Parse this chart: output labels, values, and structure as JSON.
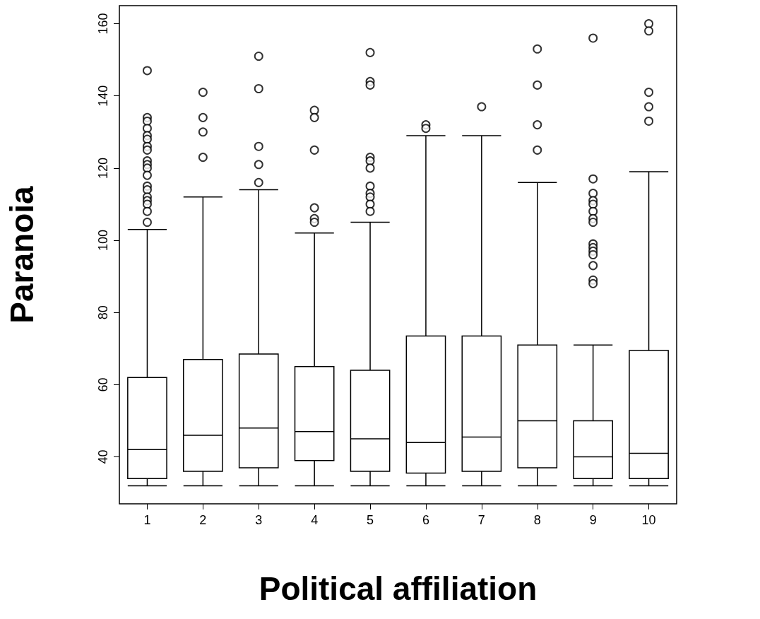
{
  "chart_data": {
    "type": "box",
    "xlabel": "Political affiliation",
    "ylabel": "Paranoia",
    "categories": [
      "1",
      "2",
      "3",
      "4",
      "5",
      "6",
      "7",
      "8",
      "9",
      "10"
    ],
    "ylim": [
      27,
      165
    ],
    "yticks": [
      40,
      60,
      80,
      100,
      120,
      140,
      160
    ],
    "boxes": [
      {
        "low": 32,
        "q1": 34,
        "median": 42,
        "q3": 62,
        "high": 103,
        "outliers": [
          147,
          134,
          133,
          131,
          129,
          128,
          126,
          125,
          122,
          121,
          120,
          118,
          115,
          114,
          112,
          111,
          110,
          108,
          105
        ]
      },
      {
        "low": 32,
        "q1": 36,
        "median": 46,
        "q3": 67,
        "high": 112,
        "outliers": [
          141,
          134,
          130,
          123
        ]
      },
      {
        "low": 32,
        "q1": 37,
        "median": 48,
        "q3": 68.5,
        "high": 114,
        "outliers": [
          151,
          142,
          126,
          121,
          116
        ]
      },
      {
        "low": 32,
        "q1": 39,
        "median": 47,
        "q3": 65,
        "high": 102,
        "outliers": [
          136,
          134,
          125,
          109,
          106,
          105
        ]
      },
      {
        "low": 32,
        "q1": 36,
        "median": 45,
        "q3": 64,
        "high": 105,
        "outliers": [
          152,
          144,
          143,
          123,
          122,
          120,
          115,
          113,
          112,
          110,
          108
        ]
      },
      {
        "low": 32,
        "q1": 35.5,
        "median": 44,
        "q3": 73.5,
        "high": 129,
        "outliers": [
          132,
          131
        ]
      },
      {
        "low": 32,
        "q1": 36,
        "median": 45.5,
        "q3": 73.5,
        "high": 129,
        "outliers": [
          137
        ]
      },
      {
        "low": 32,
        "q1": 37,
        "median": 50,
        "q3": 71,
        "high": 116,
        "outliers": [
          153,
          143,
          132,
          125
        ]
      },
      {
        "low": 32,
        "q1": 34,
        "median": 40,
        "q3": 50,
        "high": 71,
        "outliers": [
          156,
          117,
          113,
          111,
          110,
          108,
          106,
          105,
          99,
          98,
          97,
          96,
          93,
          89,
          88
        ]
      },
      {
        "low": 32,
        "q1": 34,
        "median": 41,
        "q3": 69.5,
        "high": 119,
        "outliers": [
          160,
          158,
          141,
          137,
          133
        ]
      }
    ]
  }
}
